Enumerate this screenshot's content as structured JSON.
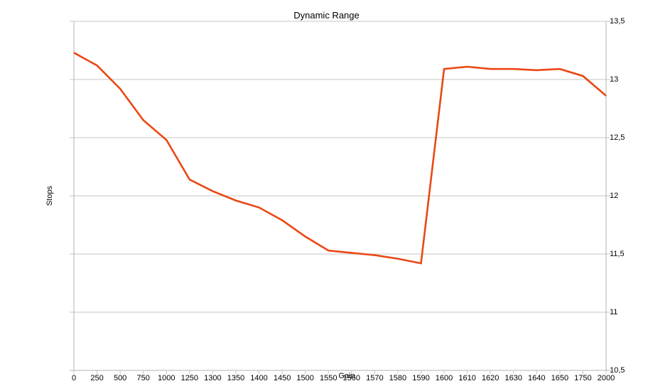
{
  "title": "Dynamic Range",
  "axes": {
    "x_title": "Gain",
    "y_title": "Stops",
    "y_tick_labels": [
      "13,5",
      "13",
      "12,5",
      "12",
      "11,5",
      "11",
      "10,5"
    ]
  },
  "colors": {
    "line": "#eb4714",
    "grid": "#c6c6c6",
    "axis": "#b3b3b3",
    "text": "#000000"
  },
  "chart_data": {
    "type": "line",
    "title": "Dynamic Range",
    "xlabel": "Gain",
    "ylabel": "Stops",
    "categories": [
      "0",
      "250",
      "500",
      "750",
      "1000",
      "1250",
      "1300",
      "1350",
      "1400",
      "1450",
      "1500",
      "1550",
      "1560",
      "1570",
      "1580",
      "1590",
      "1600",
      "1610",
      "1620",
      "1630",
      "1640",
      "1650",
      "1750",
      "2000"
    ],
    "values": [
      13.23,
      13.12,
      12.92,
      12.65,
      12.48,
      12.14,
      12.04,
      11.96,
      11.9,
      11.79,
      11.65,
      11.53,
      11.51,
      11.49,
      11.46,
      11.42,
      13.09,
      13.11,
      13.09,
      13.09,
      13.08,
      13.09,
      13.03,
      12.86
    ],
    "ylim": [
      10.5,
      13.5
    ],
    "y_tick_step": 0.5,
    "grid": "horizontal",
    "legend": "none",
    "y_axis_side": "right"
  }
}
